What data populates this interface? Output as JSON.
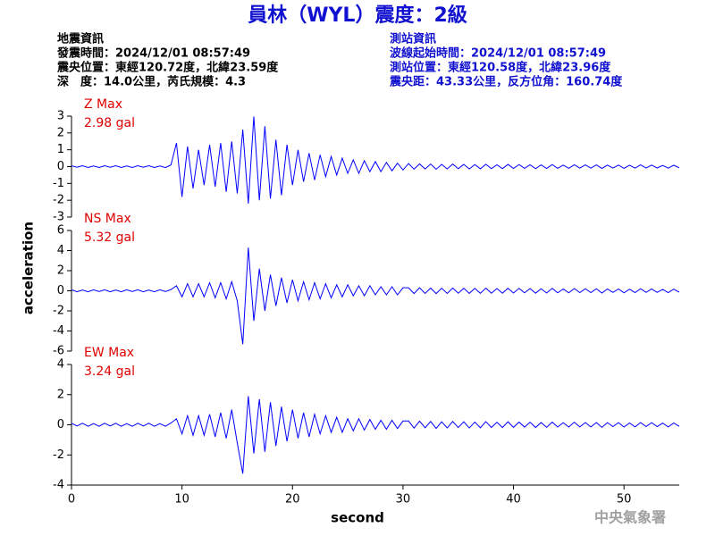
{
  "header": {
    "title": "員林（WYL）震度：2級",
    "left": [
      "地震資訊",
      "發震時間：2024/12/01 08:57:49",
      "震央位置：東經120.72度，北緯23.59度",
      "深　度：14.0公里，芮氏規模：4.3"
    ],
    "right": [
      "測站資訊",
      "波線起始時間：2024/12/01 08:57:49",
      "測站位置：東經120.58度，北緯23.96度",
      "震央距：43.33公里，反方位角：160.74度"
    ]
  },
  "footer": "中央氣象署",
  "chart_data": [
    {
      "type": "line",
      "annotation": "2.98 gal",
      "label_color": "#e00000",
      "x": [
        0,
        0.5,
        1,
        1.5,
        2,
        2.5,
        3,
        3.5,
        4,
        4.5,
        5,
        5.5,
        6,
        6.5,
        7,
        7.5,
        8,
        8.5,
        9,
        9.5,
        10,
        10.5,
        11,
        11.5,
        12,
        12.5,
        13,
        13.5,
        14,
        14.5,
        15,
        15.5,
        16,
        16.5,
        17,
        17.5,
        18,
        18.5,
        19,
        19.5,
        20,
        20.5,
        21,
        21.5,
        22,
        22.5,
        23,
        23.5,
        24,
        24.5,
        25,
        25.5,
        26,
        26.5,
        27,
        27.5,
        28,
        28.5,
        29,
        29.5,
        30,
        30.5,
        31,
        31.5,
        32,
        32.5,
        33,
        33.5,
        34,
        34.5,
        35,
        35.5,
        36,
        36.5,
        37,
        37.5,
        38,
        38.5,
        39,
        39.5,
        40,
        40.5,
        41,
        41.5,
        42,
        42.5,
        43,
        43.5,
        44,
        44.5,
        45,
        45.5,
        46,
        46.5,
        47,
        47.5,
        48,
        48.5,
        49,
        49.5,
        50,
        50.5,
        51,
        51.5,
        52,
        52.5,
        53,
        53.5,
        54,
        54.5,
        55
      ],
      "series": [
        {
          "name": "Z Max",
          "color": "#0000ff",
          "values": [
            0.05,
            -0.04,
            0.05,
            -0.05,
            0.04,
            -0.05,
            0.05,
            -0.04,
            0.05,
            -0.05,
            0.04,
            -0.05,
            0.05,
            -0.04,
            0.05,
            -0.05,
            0.04,
            -0.06,
            0.1,
            1.4,
            -1.8,
            1.2,
            -1.3,
            1.0,
            -1.1,
            1.3,
            -1.2,
            1.4,
            -1.5,
            1.5,
            -1.6,
            2.2,
            -2.2,
            2.98,
            -2.0,
            2.4,
            -1.9,
            1.6,
            -1.7,
            1.3,
            -1.1,
            1.0,
            -0.9,
            0.8,
            -0.8,
            0.7,
            -0.6,
            0.6,
            -0.5,
            0.5,
            -0.4,
            0.4,
            -0.4,
            0.35,
            -0.3,
            0.3,
            -0.3,
            0.25,
            -0.25,
            0.2,
            -0.2,
            0.18,
            -0.15,
            0.16,
            -0.14,
            0.15,
            -0.16,
            0.13,
            -0.14,
            0.15,
            -0.12,
            0.13,
            -0.14,
            0.12,
            -0.13,
            0.14,
            -0.12,
            0.11,
            -0.12,
            0.13,
            -0.11,
            0.12,
            -0.1,
            0.11,
            -0.12,
            0.1,
            -0.11,
            0.12,
            -0.1,
            0.09,
            -0.1,
            0.11,
            -0.09,
            0.1,
            -0.09,
            0.1,
            -0.11,
            0.09,
            -0.08,
            0.09,
            -0.1,
            0.08,
            -0.09,
            0.1,
            -0.08,
            0.09,
            -0.08,
            0.07,
            -0.09,
            0.08,
            -0.07
          ]
        }
      ],
      "xlim": [
        0,
        55
      ],
      "ylim": [
        -3,
        3
      ],
      "yticks": [
        -3,
        -2,
        -1,
        0,
        1,
        2,
        3
      ]
    },
    {
      "type": "line",
      "annotation": "5.32 gal",
      "label_color": "#e00000",
      "ylabel": "acceleration",
      "x": [
        0,
        0.5,
        1,
        1.5,
        2,
        2.5,
        3,
        3.5,
        4,
        4.5,
        5,
        5.5,
        6,
        6.5,
        7,
        7.5,
        8,
        8.5,
        9,
        9.5,
        10,
        10.5,
        11,
        11.5,
        12,
        12.5,
        13,
        13.5,
        14,
        14.5,
        15,
        15.5,
        16,
        16.5,
        17,
        17.5,
        18,
        18.5,
        19,
        19.5,
        20,
        20.5,
        21,
        21.5,
        22,
        22.5,
        23,
        23.5,
        24,
        24.5,
        25,
        25.5,
        26,
        26.5,
        27,
        27.5,
        28,
        28.5,
        29,
        29.5,
        30,
        30.5,
        31,
        31.5,
        32,
        32.5,
        33,
        33.5,
        34,
        34.5,
        35,
        35.5,
        36,
        36.5,
        37,
        37.5,
        38,
        38.5,
        39,
        39.5,
        40,
        40.5,
        41,
        41.5,
        42,
        42.5,
        43,
        43.5,
        44,
        44.5,
        45,
        45.5,
        46,
        46.5,
        47,
        47.5,
        48,
        48.5,
        49,
        49.5,
        50,
        50.5,
        51,
        51.5,
        52,
        52.5,
        53,
        53.5,
        54,
        54.5,
        55
      ],
      "series": [
        {
          "name": "NS Max",
          "color": "#0000ff",
          "values": [
            0.1,
            -0.1,
            0.08,
            -0.1,
            0.1,
            -0.08,
            0.1,
            -0.1,
            0.08,
            -0.1,
            0.1,
            -0.08,
            0.1,
            -0.1,
            0.08,
            -0.1,
            0.1,
            -0.08,
            0.12,
            0.5,
            -0.6,
            0.7,
            -0.6,
            0.7,
            -0.6,
            0.8,
            -0.7,
            0.8,
            -0.8,
            0.9,
            -1.0,
            -5.32,
            4.3,
            -3.0,
            2.2,
            -2.0,
            1.6,
            -1.5,
            1.3,
            -1.2,
            1.1,
            -1.0,
            0.9,
            -0.9,
            0.8,
            -0.8,
            0.7,
            -0.7,
            0.6,
            -0.6,
            0.6,
            -0.5,
            0.5,
            -0.5,
            0.5,
            -0.4,
            0.4,
            -0.4,
            0.4,
            -0.4,
            0.3,
            0.3,
            -0.28,
            0.3,
            -0.26,
            0.27,
            -0.28,
            0.25,
            -0.26,
            0.27,
            -0.24,
            0.25,
            -0.26,
            0.24,
            -0.25,
            0.26,
            -0.24,
            0.22,
            -0.24,
            0.25,
            -0.22,
            0.24,
            -0.2,
            0.22,
            -0.24,
            0.2,
            -0.22,
            0.24,
            -0.2,
            0.18,
            -0.2,
            0.22,
            -0.18,
            0.2,
            -0.18,
            0.2,
            -0.22,
            0.18,
            -0.16,
            0.18,
            -0.2,
            0.16,
            -0.18,
            0.2,
            -0.16,
            0.18,
            -0.16,
            0.14,
            -0.18,
            0.16,
            -0.14
          ]
        }
      ],
      "xlim": [
        0,
        55
      ],
      "ylim": [
        -6,
        6
      ],
      "yticks": [
        -6,
        -4,
        -2,
        0,
        2,
        4,
        6
      ]
    },
    {
      "type": "line",
      "annotation": "3.24 gal",
      "label_color": "#e00000",
      "xlabel": "second",
      "x": [
        0,
        0.5,
        1,
        1.5,
        2,
        2.5,
        3,
        3.5,
        4,
        4.5,
        5,
        5.5,
        6,
        6.5,
        7,
        7.5,
        8,
        8.5,
        9,
        9.5,
        10,
        10.5,
        11,
        11.5,
        12,
        12.5,
        13,
        13.5,
        14,
        14.5,
        15,
        15.5,
        16,
        16.5,
        17,
        17.5,
        18,
        18.5,
        19,
        19.5,
        20,
        20.5,
        21,
        21.5,
        22,
        22.5,
        23,
        23.5,
        24,
        24.5,
        25,
        25.5,
        26,
        26.5,
        27,
        27.5,
        28,
        28.5,
        29,
        29.5,
        30,
        30.5,
        31,
        31.5,
        32,
        32.5,
        33,
        33.5,
        34,
        34.5,
        35,
        35.5,
        36,
        36.5,
        37,
        37.5,
        38,
        38.5,
        39,
        39.5,
        40,
        40.5,
        41,
        41.5,
        42,
        42.5,
        43,
        43.5,
        44,
        44.5,
        45,
        45.5,
        46,
        46.5,
        47,
        47.5,
        48,
        48.5,
        49,
        49.5,
        50,
        50.5,
        51,
        51.5,
        52,
        52.5,
        53,
        53.5,
        54,
        54.5,
        55
      ],
      "series": [
        {
          "name": "EW Max",
          "color": "#0000ff",
          "values": [
            0.1,
            -0.08,
            0.1,
            -0.1,
            0.08,
            -0.1,
            0.1,
            -0.08,
            0.1,
            -0.1,
            0.08,
            -0.1,
            0.1,
            -0.08,
            0.1,
            -0.1,
            0.08,
            -0.1,
            0.12,
            0.4,
            -0.6,
            0.6,
            -0.7,
            0.6,
            -0.7,
            0.7,
            -0.8,
            0.8,
            -0.9,
            1.0,
            -1.2,
            -3.24,
            1.9,
            -1.9,
            1.7,
            -1.8,
            1.5,
            -1.4,
            1.2,
            -1.1,
            1.0,
            -0.9,
            0.8,
            -0.8,
            0.7,
            -0.6,
            0.6,
            -0.5,
            0.5,
            -0.5,
            0.4,
            -0.4,
            0.4,
            -0.35,
            0.35,
            -0.3,
            0.3,
            -0.3,
            0.3,
            -0.25,
            0.25,
            0.25,
            -0.22,
            0.24,
            -0.2,
            0.22,
            -0.24,
            0.2,
            -0.21,
            0.22,
            -0.18,
            0.2,
            -0.21,
            0.18,
            -0.2,
            0.21,
            -0.18,
            0.17,
            -0.18,
            0.2,
            -0.17,
            0.18,
            -0.15,
            0.17,
            -0.18,
            0.15,
            -0.17,
            0.18,
            -0.15,
            0.14,
            -0.15,
            0.17,
            -0.14,
            0.15,
            -0.14,
            0.15,
            -0.17,
            0.14,
            -0.12,
            0.14,
            -0.15,
            0.12,
            -0.14,
            0.15,
            -0.12,
            0.14,
            -0.12,
            0.11,
            -0.14,
            0.12,
            -0.11
          ]
        }
      ],
      "xlim": [
        0,
        55
      ],
      "xticks": [
        0,
        10,
        20,
        30,
        40,
        50
      ],
      "ylim": [
        -4,
        4
      ],
      "yticks": [
        -4,
        -2,
        0,
        2,
        4
      ]
    }
  ]
}
